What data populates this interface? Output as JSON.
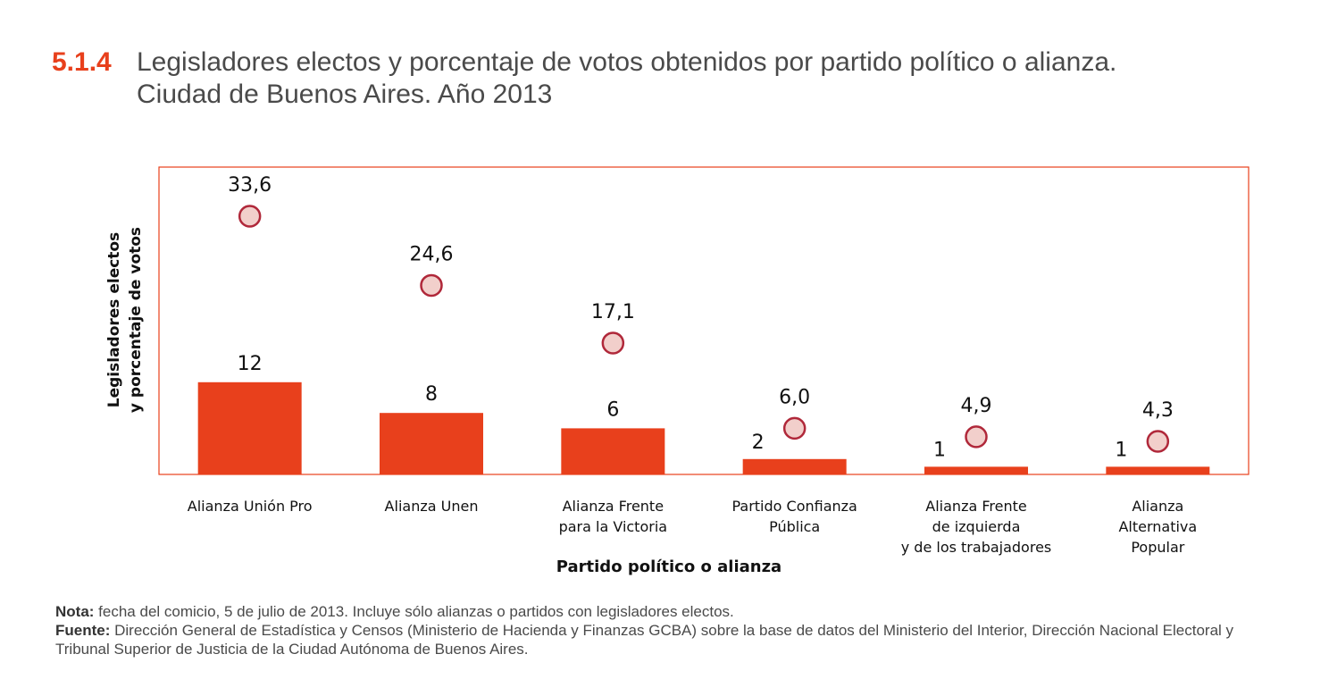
{
  "header": {
    "number": "5.1.4",
    "title_line1": "Legisladores electos y porcentaje de votos obtenidos por partido político o alianza.",
    "title_line2": "Ciudad de Buenos Aires.  Año 2013"
  },
  "chart_data": {
    "type": "bar",
    "title": "Legisladores electos y porcentaje de votos obtenidos por partido político o alianza. Ciudad de Buenos Aires. Año 2013",
    "xlabel": "Partido político o alianza",
    "ylabel": [
      "Legisladores  electos",
      "y porcentaje de votos"
    ],
    "categories": [
      [
        "Alianza Unión Pro"
      ],
      [
        "Alianza Unen"
      ],
      [
        "Alianza Frente",
        "para la Victoria"
      ],
      [
        "Partido Confianza",
        "Pública"
      ],
      [
        "Alianza Frente",
        "de izquierda",
        "y de los trabajadores"
      ],
      [
        "Alianza",
        "Alternativa",
        "Popular"
      ]
    ],
    "series": [
      {
        "name": "Legisladores electos",
        "kind": "bar",
        "values": [
          12,
          8,
          6,
          2,
          1,
          1
        ],
        "labels": [
          "12",
          "8",
          "6",
          "2",
          "1",
          "1"
        ],
        "color": "#e8401c"
      },
      {
        "name": "Porcentaje de votos",
        "kind": "point",
        "values": [
          33.6,
          24.6,
          17.1,
          6.0,
          4.9,
          4.3
        ],
        "labels": [
          "33,6",
          "24,6",
          "17,1",
          "6,0",
          "4,9",
          "4,3"
        ],
        "color": "#f2cfcb",
        "stroke": "#b0283a"
      }
    ],
    "ylim": [
      0,
      40
    ],
    "frame_color": "#e8401c"
  },
  "notes": {
    "nota_label": "Nota:",
    "nota_text": " fecha del comicio, 5 de julio de 2013. Incluye sólo alianzas o partidos con legisladores electos.",
    "fuente_label": "Fuente:",
    "fuente_text": " Dirección General de Estadística y Censos (Ministerio de Hacienda y Finanzas GCBA) sobre la base de datos del Ministerio del Interior, Dirección Nacional Electoral y Tribunal Superior de Justicia de la Ciudad Autónoma de Buenos Aires."
  }
}
